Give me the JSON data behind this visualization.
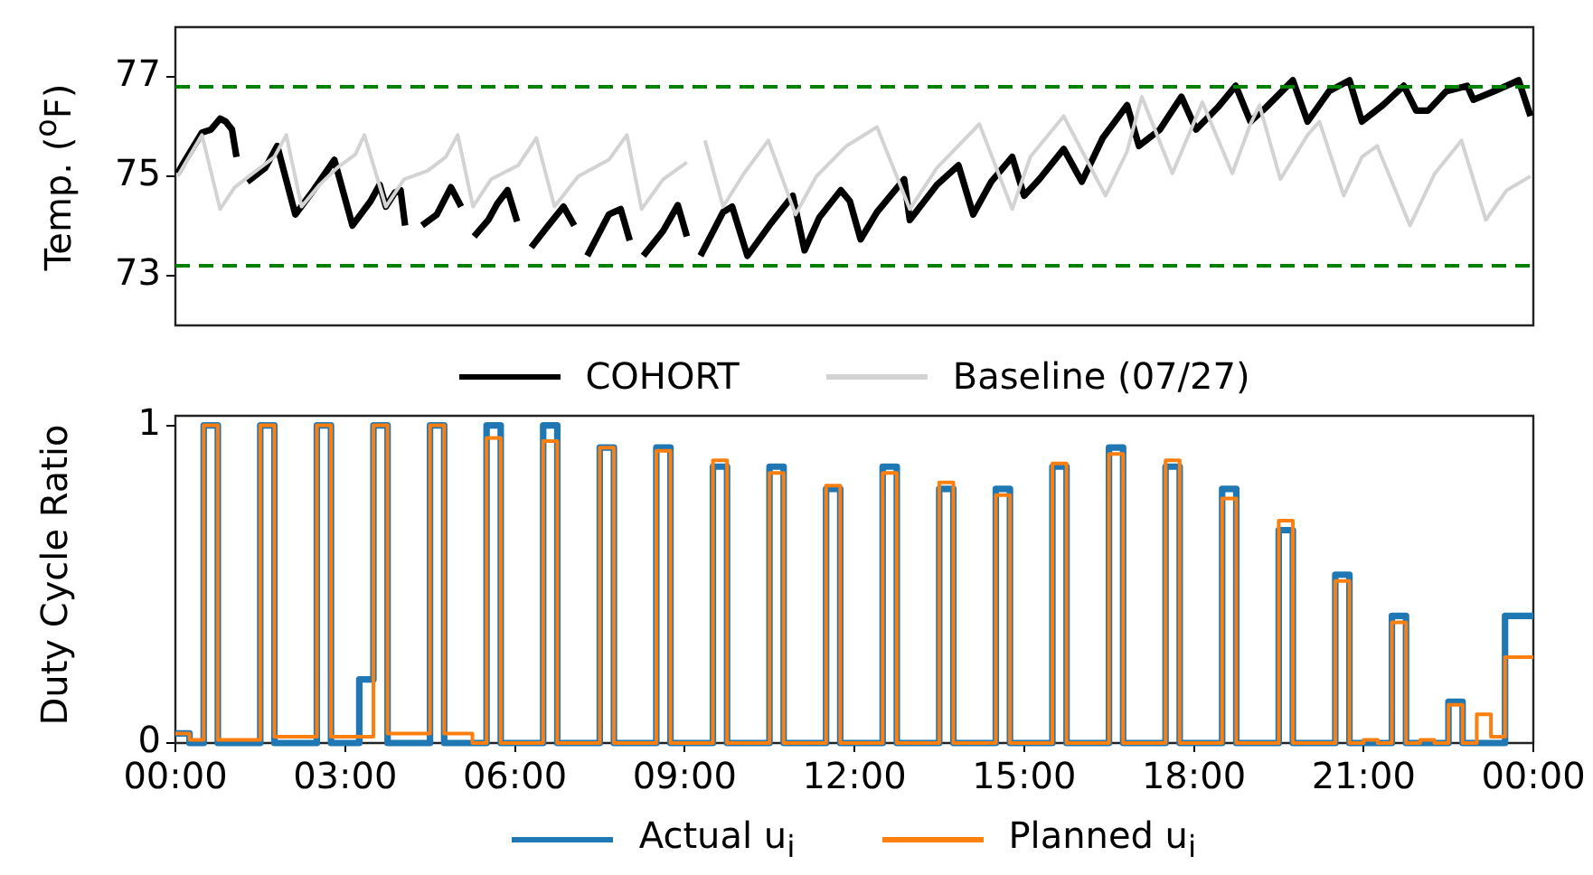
{
  "chart_data": [
    {
      "type": "line",
      "ylabel": "Temp. ($^{o}$F)",
      "xlim": [
        0,
        24
      ],
      "ylim": [
        72,
        78
      ],
      "yticks": [
        73,
        75,
        77
      ],
      "tick_labels": "y",
      "legend": "bottom",
      "ref_lines": [
        {
          "axis": "y",
          "value": 76.8,
          "color": "#008000",
          "line_style": "dashed"
        },
        {
          "axis": "y",
          "value": 73.2,
          "color": "#008000",
          "line_style": "dashed"
        }
      ],
      "series": [
        {
          "name": "COHORT",
          "color": "#000000",
          "x": [
            0.04,
            0.15,
            0.47,
            0.63,
            0.79,
            0.89,
            1.0,
            1.08,
            1.17,
            1.27,
            1.59,
            1.8,
            2.12,
            2.44,
            2.81,
            3.13,
            3.45,
            3.61,
            3.72,
            3.88,
            3.98,
            4.06,
            4.2,
            4.36,
            4.62,
            4.87,
            5.05,
            5.15,
            5.28,
            5.53,
            5.69,
            5.87,
            6.04,
            6.15,
            6.29,
            6.59,
            6.86,
            7.05,
            7.15,
            7.28,
            7.66,
            7.87,
            8.03,
            8.15,
            8.27,
            8.62,
            8.88,
            9.04,
            9.15,
            9.28,
            9.68,
            9.84,
            10.11,
            10.53,
            10.91,
            11.12,
            11.38,
            11.76,
            11.92,
            12.11,
            12.4,
            12.88,
            12.98,
            13.46,
            13.84,
            14.1,
            14.42,
            14.79,
            15.0,
            15.27,
            15.7,
            16.02,
            16.39,
            16.82,
            17.03,
            17.4,
            17.78,
            18.04,
            18.42,
            18.74,
            19.0,
            19.27,
            19.75,
            20.01,
            20.39,
            20.75,
            20.97,
            21.34,
            21.71,
            21.93,
            22.14,
            22.46,
            22.83,
            22.94,
            23.31,
            23.74,
            23.95
          ],
          "values": [
            75.06,
            75.28,
            75.88,
            75.94,
            76.16,
            76.1,
            75.94,
            75.39,
            null,
            74.89,
            75.17,
            75.61,
            74.23,
            74.72,
            75.33,
            74.01,
            74.5,
            74.83,
            74.39,
            74.67,
            74.72,
            74.01,
            null,
            74.01,
            74.23,
            74.78,
            74.39,
            null,
            73.79,
            74.12,
            74.45,
            74.72,
            74.09,
            null,
            73.57,
            74.01,
            74.39,
            74.01,
            null,
            73.4,
            74.23,
            74.34,
            73.71,
            null,
            73.4,
            73.9,
            74.42,
            73.79,
            null,
            73.4,
            74.28,
            74.39,
            73.4,
            74.06,
            74.61,
            73.51,
            74.17,
            74.72,
            74.5,
            73.73,
            74.28,
            74.94,
            74.12,
            74.83,
            75.22,
            74.23,
            74.89,
            75.39,
            74.61,
            74.94,
            75.55,
            74.89,
            75.77,
            76.43,
            75.61,
            75.94,
            76.6,
            75.94,
            76.38,
            76.82,
            76.1,
            76.38,
            76.93,
            76.1,
            76.71,
            76.93,
            76.1,
            76.43,
            76.82,
            76.32,
            76.32,
            76.71,
            76.82,
            76.54,
            76.71,
            76.93,
            76.21
          ]
        },
        {
          "name": "Baseline (07/27)",
          "color": "#d3d3d3",
          "x": [
            0.04,
            0.47,
            0.79,
            1.05,
            1.37,
            1.75,
            1.96,
            2.23,
            2.55,
            2.86,
            3.18,
            3.34,
            3.72,
            4.04,
            4.46,
            4.78,
            4.99,
            5.26,
            5.58,
            6.06,
            6.38,
            6.7,
            7.12,
            7.66,
            7.98,
            8.24,
            8.62,
            9.04,
            9.2,
            9.36,
            9.68,
            10.05,
            10.48,
            10.96,
            11.33,
            11.86,
            12.4,
            12.98,
            13.46,
            14.21,
            14.79,
            15.11,
            15.7,
            16.44,
            16.82,
            17.08,
            17.62,
            17.99,
            18.15,
            18.68,
            19.0,
            19.16,
            19.53,
            20.01,
            20.22,
            20.65,
            20.97,
            21.24,
            21.82,
            22.26,
            22.73,
            23.16,
            23.53,
            23.95
          ],
          "values": [
            75.0,
            75.83,
            74.34,
            74.78,
            75.06,
            75.39,
            75.83,
            74.39,
            74.83,
            75.17,
            75.44,
            75.83,
            74.39,
            74.94,
            75.11,
            75.39,
            75.83,
            74.39,
            74.94,
            75.22,
            75.77,
            74.39,
            75.0,
            75.33,
            75.83,
            74.34,
            74.94,
            75.28,
            null,
            75.72,
            74.39,
            75.06,
            75.72,
            74.23,
            75.0,
            75.61,
            75.99,
            74.34,
            75.17,
            76.05,
            74.34,
            75.39,
            76.21,
            74.61,
            75.5,
            76.6,
            75.06,
            76.05,
            76.49,
            75.06,
            76.05,
            76.43,
            74.94,
            75.83,
            76.1,
            74.61,
            75.39,
            75.61,
            74.01,
            75.06,
            75.72,
            74.12,
            74.72,
            75.0
          ]
        }
      ]
    },
    {
      "type": "step",
      "ylabel": "Duty Cycle Ratio",
      "xlim": [
        0,
        24
      ],
      "ylim": [
        0,
        1.03
      ],
      "yticks": [
        0,
        1
      ],
      "legend": "bottom",
      "xticks": [
        {
          "value": 0,
          "label": "00:00"
        },
        {
          "value": 3,
          "label": "03:00"
        },
        {
          "value": 6,
          "label": "06:00"
        },
        {
          "value": 9,
          "label": "09:00"
        },
        {
          "value": 12,
          "label": "12:00"
        },
        {
          "value": 15,
          "label": "15:00"
        },
        {
          "value": 18,
          "label": "18:00"
        },
        {
          "value": 21,
          "label": "21:00"
        },
        {
          "value": 24,
          "label": "00:00"
        }
      ],
      "x": [
        0,
        0.25,
        0.5,
        0.75,
        1,
        1.25,
        1.5,
        1.75,
        2,
        2.25,
        2.5,
        2.75,
        3,
        3.25,
        3.5,
        3.75,
        4,
        4.25,
        4.5,
        4.75,
        5,
        5.25,
        5.5,
        5.75,
        6,
        6.25,
        6.5,
        6.75,
        7,
        7.25,
        7.5,
        7.75,
        8,
        8.25,
        8.5,
        8.75,
        9,
        9.25,
        9.5,
        9.75,
        10,
        10.25,
        10.5,
        10.75,
        11,
        11.25,
        11.5,
        11.75,
        12,
        12.25,
        12.5,
        12.75,
        13,
        13.25,
        13.5,
        13.75,
        14,
        14.25,
        14.5,
        14.75,
        15,
        15.25,
        15.5,
        15.75,
        16,
        16.25,
        16.5,
        16.75,
        17,
        17.25,
        17.5,
        17.75,
        18,
        18.25,
        18.5,
        18.75,
        19,
        19.25,
        19.5,
        19.75,
        20,
        20.25,
        20.5,
        20.75,
        21,
        21.25,
        21.5,
        21.75,
        22,
        22.25,
        22.5,
        22.75,
        23,
        23.25,
        23.5,
        23.75,
        24
      ],
      "series": [
        {
          "name": "Actual u$_{i}$",
          "color": "#1f77b4",
          "values": [
            0.03,
            0.03,
            0,
            1,
            0,
            0,
            0,
            1,
            0,
            0,
            0,
            1,
            0,
            0,
            0.2,
            1,
            0,
            0,
            0,
            1,
            0,
            0,
            0,
            1,
            0,
            0,
            0,
            1,
            0,
            0,
            0,
            0.93,
            0,
            0,
            0,
            0.93,
            0,
            0,
            0,
            0.87,
            0,
            0,
            0,
            0.87,
            0,
            0,
            0,
            0.8,
            0,
            0,
            0,
            0.87,
            0,
            0,
            0,
            0.8,
            0,
            0,
            0,
            0.8,
            0,
            0,
            0,
            0.87,
            0,
            0,
            0,
            0.93,
            0,
            0,
            0,
            0.87,
            0,
            0,
            0,
            0.8,
            0,
            0,
            0,
            0.67,
            0,
            0,
            0,
            0.53,
            0,
            0,
            0,
            0.4,
            0,
            0,
            0,
            0.13,
            0,
            0,
            0,
            0.4,
            0.4
          ]
        },
        {
          "name": "Planned u$_{i}$",
          "color": "#ff7f0e",
          "values": [
            0.03,
            0.03,
            0.01,
            1,
            0.01,
            0.01,
            0.01,
            1,
            0.02,
            0.02,
            0.02,
            1,
            0.02,
            0.02,
            0.02,
            1,
            0.03,
            0.03,
            0.03,
            1,
            0.03,
            0.03,
            0,
            0.96,
            0,
            0,
            0,
            0.95,
            0,
            0,
            0,
            0.93,
            0,
            0,
            0,
            0.92,
            0,
            0,
            0,
            0.89,
            0,
            0,
            0,
            0.85,
            0,
            0,
            0,
            0.81,
            0,
            0,
            0,
            0.85,
            0,
            0,
            0,
            0.82,
            0,
            0,
            0,
            0.78,
            0,
            0,
            0,
            0.88,
            0,
            0,
            0,
            0.91,
            0,
            0,
            0,
            0.89,
            0,
            0,
            0,
            0.77,
            0,
            0,
            0,
            0.7,
            0,
            0,
            0,
            0.51,
            0,
            0.01,
            0,
            0.38,
            0,
            0.01,
            0,
            0.12,
            0,
            0.09,
            0.02,
            0.27,
            0.27
          ]
        }
      ]
    }
  ]
}
